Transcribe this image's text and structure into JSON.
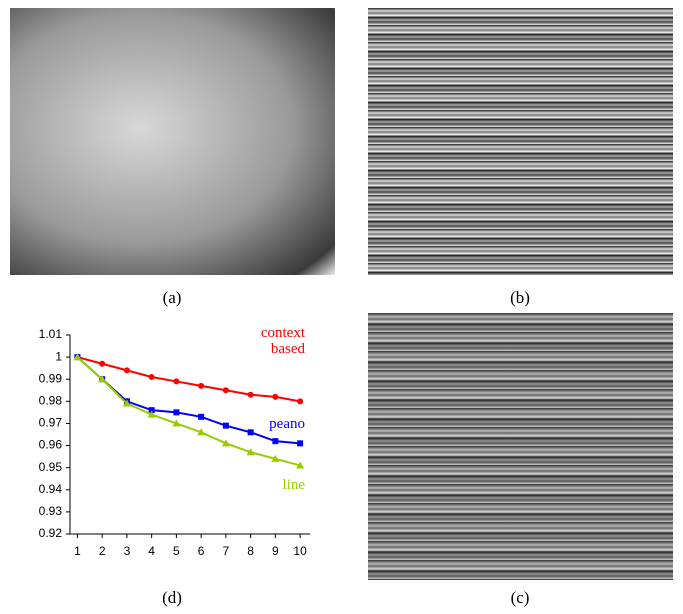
{
  "captions": {
    "a": "(a)",
    "b": "(b)",
    "c": "(c)",
    "d": "(d)"
  },
  "chart_data": {
    "type": "line",
    "x": [
      1,
      2,
      3,
      4,
      5,
      6,
      7,
      8,
      9,
      10
    ],
    "xlim": [
      0.7,
      10.4
    ],
    "xticks": [
      1,
      2,
      3,
      4,
      5,
      6,
      7,
      8,
      9,
      10
    ],
    "ylim": [
      0.92,
      1.01
    ],
    "yticks": [
      0.92,
      0.93,
      0.94,
      0.95,
      0.96,
      0.97,
      0.98,
      0.99,
      1,
      1.01
    ],
    "series": [
      {
        "name": "context based",
        "color": "#ff0000",
        "marker": "circle",
        "values": [
          1,
          0.997,
          0.994,
          0.991,
          0.989,
          0.987,
          0.985,
          0.983,
          0.982,
          0.98
        ]
      },
      {
        "name": "peano",
        "color": "#0000ff",
        "marker": "square",
        "values": [
          1,
          0.99,
          0.98,
          0.976,
          0.975,
          0.973,
          0.969,
          0.966,
          0.962,
          0.961
        ]
      },
      {
        "name": "line",
        "color": "#99cc00",
        "marker": "triangle",
        "values": [
          1,
          0.99,
          0.979,
          0.974,
          0.97,
          0.966,
          0.961,
          0.957,
          0.954,
          0.951
        ]
      }
    ]
  }
}
